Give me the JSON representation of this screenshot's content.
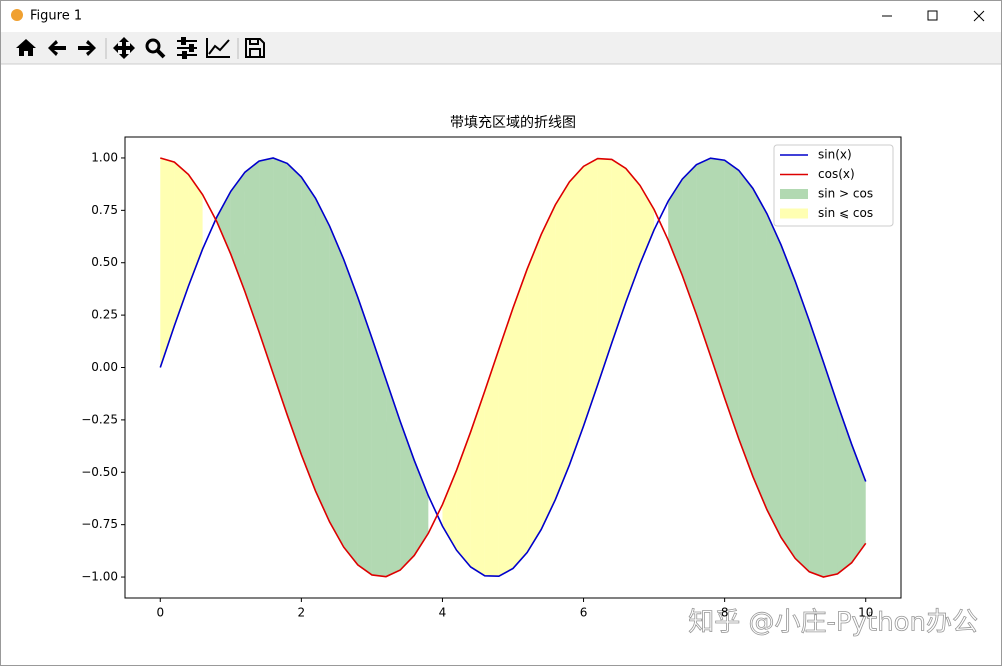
{
  "window": {
    "title": "Figure 1"
  },
  "chart_data": {
    "type": "line",
    "title": "带填充区域的折线图",
    "x": [
      0,
      0.2,
      0.4,
      0.6,
      0.8,
      1.0,
      1.2,
      1.4,
      1.6,
      1.8,
      2.0,
      2.2,
      2.4,
      2.6,
      2.8,
      3.0,
      3.2,
      3.4,
      3.6,
      3.8,
      4.0,
      4.2,
      4.4,
      4.6,
      4.8,
      5.0,
      5.2,
      5.4,
      5.6,
      5.8,
      6.0,
      6.2,
      6.4,
      6.6,
      6.8,
      7.0,
      7.2,
      7.4,
      7.6,
      7.8,
      8.0,
      8.2,
      8.4,
      8.6,
      8.8,
      9.0,
      9.2,
      9.4,
      9.6,
      9.8,
      10
    ],
    "series": [
      {
        "name": "sin(x)",
        "color": "#0000cc",
        "values": [
          0,
          0.199,
          0.389,
          0.565,
          0.717,
          0.841,
          0.932,
          0.985,
          1.0,
          0.974,
          0.909,
          0.808,
          0.675,
          0.516,
          0.335,
          0.141,
          -0.058,
          -0.256,
          -0.443,
          -0.612,
          -0.757,
          -0.872,
          -0.952,
          -0.994,
          -0.996,
          -0.959,
          -0.883,
          -0.773,
          -0.631,
          -0.465,
          -0.279,
          -0.083,
          0.117,
          0.312,
          0.494,
          0.657,
          0.794,
          0.899,
          0.968,
          0.999,
          0.989,
          0.941,
          0.855,
          0.734,
          0.585,
          0.412,
          0.223,
          0.026,
          -0.174,
          -0.366,
          -0.544
        ]
      },
      {
        "name": "cos(x)",
        "color": "#dd0000",
        "values": [
          1,
          0.98,
          0.921,
          0.825,
          0.697,
          0.54,
          0.362,
          0.17,
          -0.029,
          -0.227,
          -0.416,
          -0.589,
          -0.737,
          -0.857,
          -0.942,
          -0.99,
          -0.998,
          -0.967,
          -0.897,
          -0.791,
          -0.654,
          -0.49,
          -0.307,
          -0.112,
          0.087,
          0.284,
          0.469,
          0.635,
          0.776,
          0.886,
          0.96,
          0.997,
          0.993,
          0.95,
          0.869,
          0.754,
          0.608,
          0.439,
          0.253,
          0.055,
          -0.146,
          -0.34,
          -0.52,
          -0.679,
          -0.811,
          -0.911,
          -0.975,
          -1.0,
          -0.985,
          -0.932,
          -0.839
        ]
      }
    ],
    "fills": [
      {
        "name": "sin > cos",
        "color": "green",
        "alpha": 0.3
      },
      {
        "name": "sin ⩽ cos",
        "color": "yellow",
        "alpha": 0.3
      }
    ],
    "xlim": [
      -0.5,
      10.5
    ],
    "ylim": [
      -1.1,
      1.1
    ],
    "xticks": [
      0,
      2,
      4,
      6,
      8,
      10
    ],
    "yticks": [
      {
        "value": -1,
        "label": "−1.00"
      },
      {
        "value": -0.75,
        "label": "−0.75"
      },
      {
        "value": -0.5,
        "label": "−0.50"
      },
      {
        "value": -0.25,
        "label": "−0.25"
      },
      {
        "value": 0,
        "label": "0.00"
      },
      {
        "value": 0.25,
        "label": "0.25"
      },
      {
        "value": 0.5,
        "label": "0.50"
      },
      {
        "value": 0.75,
        "label": "0.75"
      },
      {
        "value": 1,
        "label": "1.00"
      }
    ],
    "grid": false,
    "legend": "upper right"
  },
  "watermark": "知乎 @小庄-Python办公"
}
